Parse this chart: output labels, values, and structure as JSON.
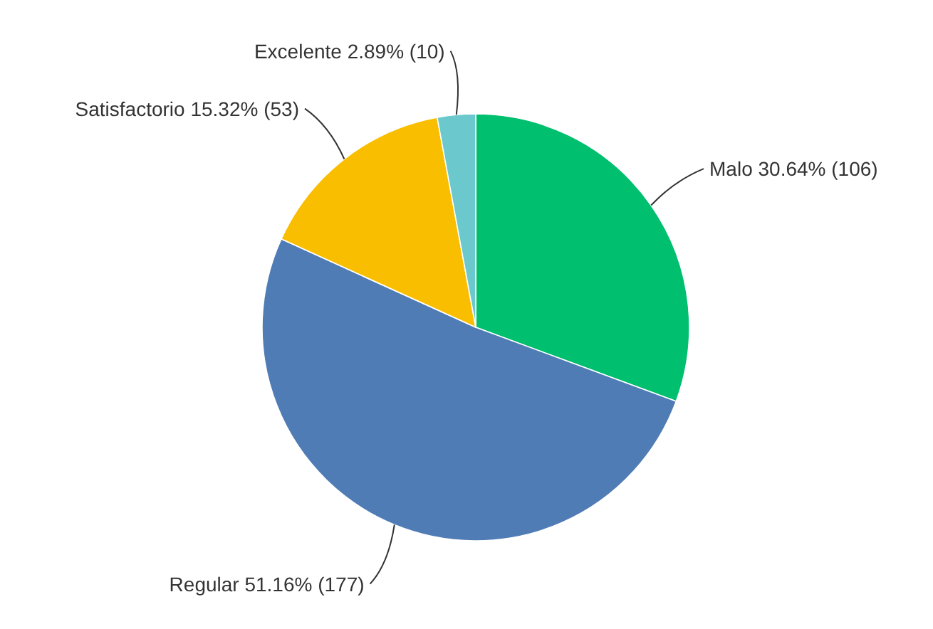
{
  "chart_data": {
    "type": "pie",
    "categories": [
      "Malo",
      "Regular",
      "Satisfactorio",
      "Excelente"
    ],
    "values": [
      106,
      177,
      53,
      10
    ],
    "value_labels": [
      "30.64% (106)",
      "51.16% (177)",
      "15.32% (53)",
      "2.89% (10)"
    ],
    "colors": [
      "#00bf6f",
      "#507cb6",
      "#f9be00",
      "#6bc8cd"
    ]
  }
}
